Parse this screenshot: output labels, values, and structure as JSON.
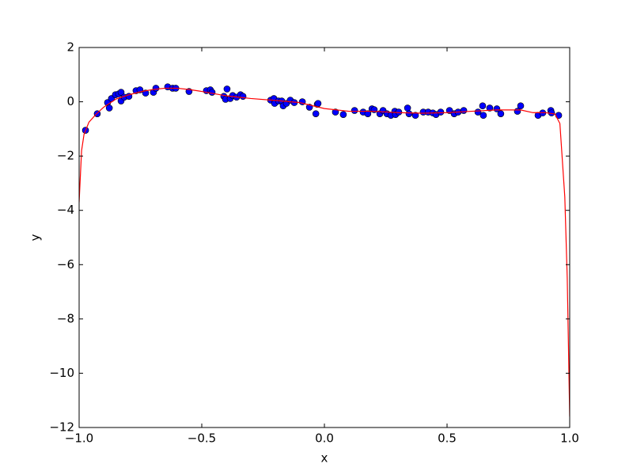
{
  "chart_data": {
    "type": "scatter",
    "x_label": "x",
    "y_label": "y",
    "xlim": [
      -1,
      1
    ],
    "ylim": [
      -12,
      2
    ],
    "xticks": [
      {
        "value": -1,
        "label": "−1.0"
      },
      {
        "value": -0.5,
        "label": "−0.5"
      },
      {
        "value": 0,
        "label": "0.0"
      },
      {
        "value": 0.5,
        "label": "0.5"
      },
      {
        "value": 1,
        "label": "1.0"
      }
    ],
    "yticks": [
      2,
      0,
      {
        "value": -2,
        "label": "−2"
      },
      {
        "value": -4,
        "label": "−4"
      },
      {
        "value": -6,
        "label": "−6"
      },
      {
        "value": -8,
        "label": "−8"
      },
      {
        "value": -10,
        "label": "−10"
      },
      {
        "value": -12,
        "label": "−12"
      }
    ],
    "grid": false,
    "series": [
      {
        "type": "scatter",
        "color": "#0000ff",
        "x": [
          -0.974,
          -0.926,
          -0.884,
          -0.877,
          -0.868,
          -0.852,
          -0.839,
          -0.829,
          -0.829,
          -0.816,
          -0.797,
          -0.768,
          -0.752,
          -0.729,
          -0.697,
          -0.687,
          -0.639,
          -0.619,
          -0.606,
          -0.552,
          -0.481,
          -0.465,
          -0.458,
          -0.41,
          -0.403,
          -0.397,
          -0.384,
          -0.374,
          -0.358,
          -0.342,
          -0.332,
          -0.219,
          -0.206,
          -0.203,
          -0.187,
          -0.174,
          -0.168,
          -0.155,
          -0.139,
          -0.123,
          -0.09,
          -0.061,
          -0.035,
          -0.029,
          -0.026,
          0.045,
          0.077,
          0.123,
          0.158,
          0.177,
          0.194,
          0.203,
          0.226,
          0.239,
          0.255,
          0.271,
          0.287,
          0.29,
          0.303,
          0.339,
          0.345,
          0.371,
          0.403,
          0.423,
          0.442,
          0.455,
          0.474,
          0.51,
          0.529,
          0.545,
          0.568,
          0.626,
          0.645,
          0.648,
          0.674,
          0.703,
          0.719,
          0.787,
          0.8,
          0.871,
          0.89,
          0.923,
          0.926,
          0.955
        ],
        "values": [
          -1.05,
          -0.44,
          -0.03,
          -0.23,
          0.12,
          0.26,
          0.29,
          0.35,
          0.03,
          0.17,
          0.2,
          0.41,
          0.44,
          0.32,
          0.35,
          0.5,
          0.55,
          0.5,
          0.5,
          0.38,
          0.41,
          0.44,
          0.35,
          0.2,
          0.09,
          0.47,
          0.12,
          0.23,
          0.17,
          0.26,
          0.2,
          0.06,
          0.12,
          -0.06,
          0.03,
          0.03,
          -0.15,
          -0.06,
          0.06,
          -0.03,
          0,
          -0.2,
          -0.44,
          -0.09,
          -0.06,
          -0.38,
          -0.47,
          -0.32,
          -0.38,
          -0.44,
          -0.26,
          -0.29,
          -0.44,
          -0.32,
          -0.44,
          -0.5,
          -0.35,
          -0.47,
          -0.38,
          -0.23,
          -0.44,
          -0.5,
          -0.38,
          -0.38,
          -0.41,
          -0.47,
          -0.38,
          -0.32,
          -0.44,
          -0.38,
          -0.32,
          -0.38,
          -0.15,
          -0.5,
          -0.23,
          -0.26,
          -0.44,
          -0.35,
          -0.15,
          -0.5,
          -0.41,
          -0.32,
          -0.41,
          -0.5
        ]
      },
      {
        "type": "line",
        "color": "#ff0000",
        "x": [
          -1,
          -0.99,
          -0.98,
          -0.96,
          -0.93,
          -0.9,
          -0.85,
          -0.8,
          -0.75,
          -0.7,
          -0.65,
          -0.6,
          -0.55,
          -0.5,
          -0.45,
          -0.4,
          -0.35,
          -0.3,
          -0.2,
          -0.1,
          0,
          0.1,
          0.2,
          0.3,
          0.4,
          0.5,
          0.6,
          0.7,
          0.8,
          0.85,
          0.9,
          0.94,
          0.96,
          0.98,
          0.99,
          1
        ],
        "values": [
          -3.7,
          -1.8,
          -1.2,
          -0.75,
          -0.45,
          -0.2,
          0.1,
          0.25,
          0.37,
          0.45,
          0.5,
          0.5,
          0.45,
          0.38,
          0.3,
          0.22,
          0.17,
          0.12,
          0.05,
          -0.03,
          -0.25,
          -0.35,
          -0.35,
          -0.4,
          -0.42,
          -0.4,
          -0.35,
          -0.3,
          -0.3,
          -0.4,
          -0.4,
          -0.45,
          -0.8,
          -3.5,
          -6.5,
          -11.6
        ]
      }
    ]
  }
}
